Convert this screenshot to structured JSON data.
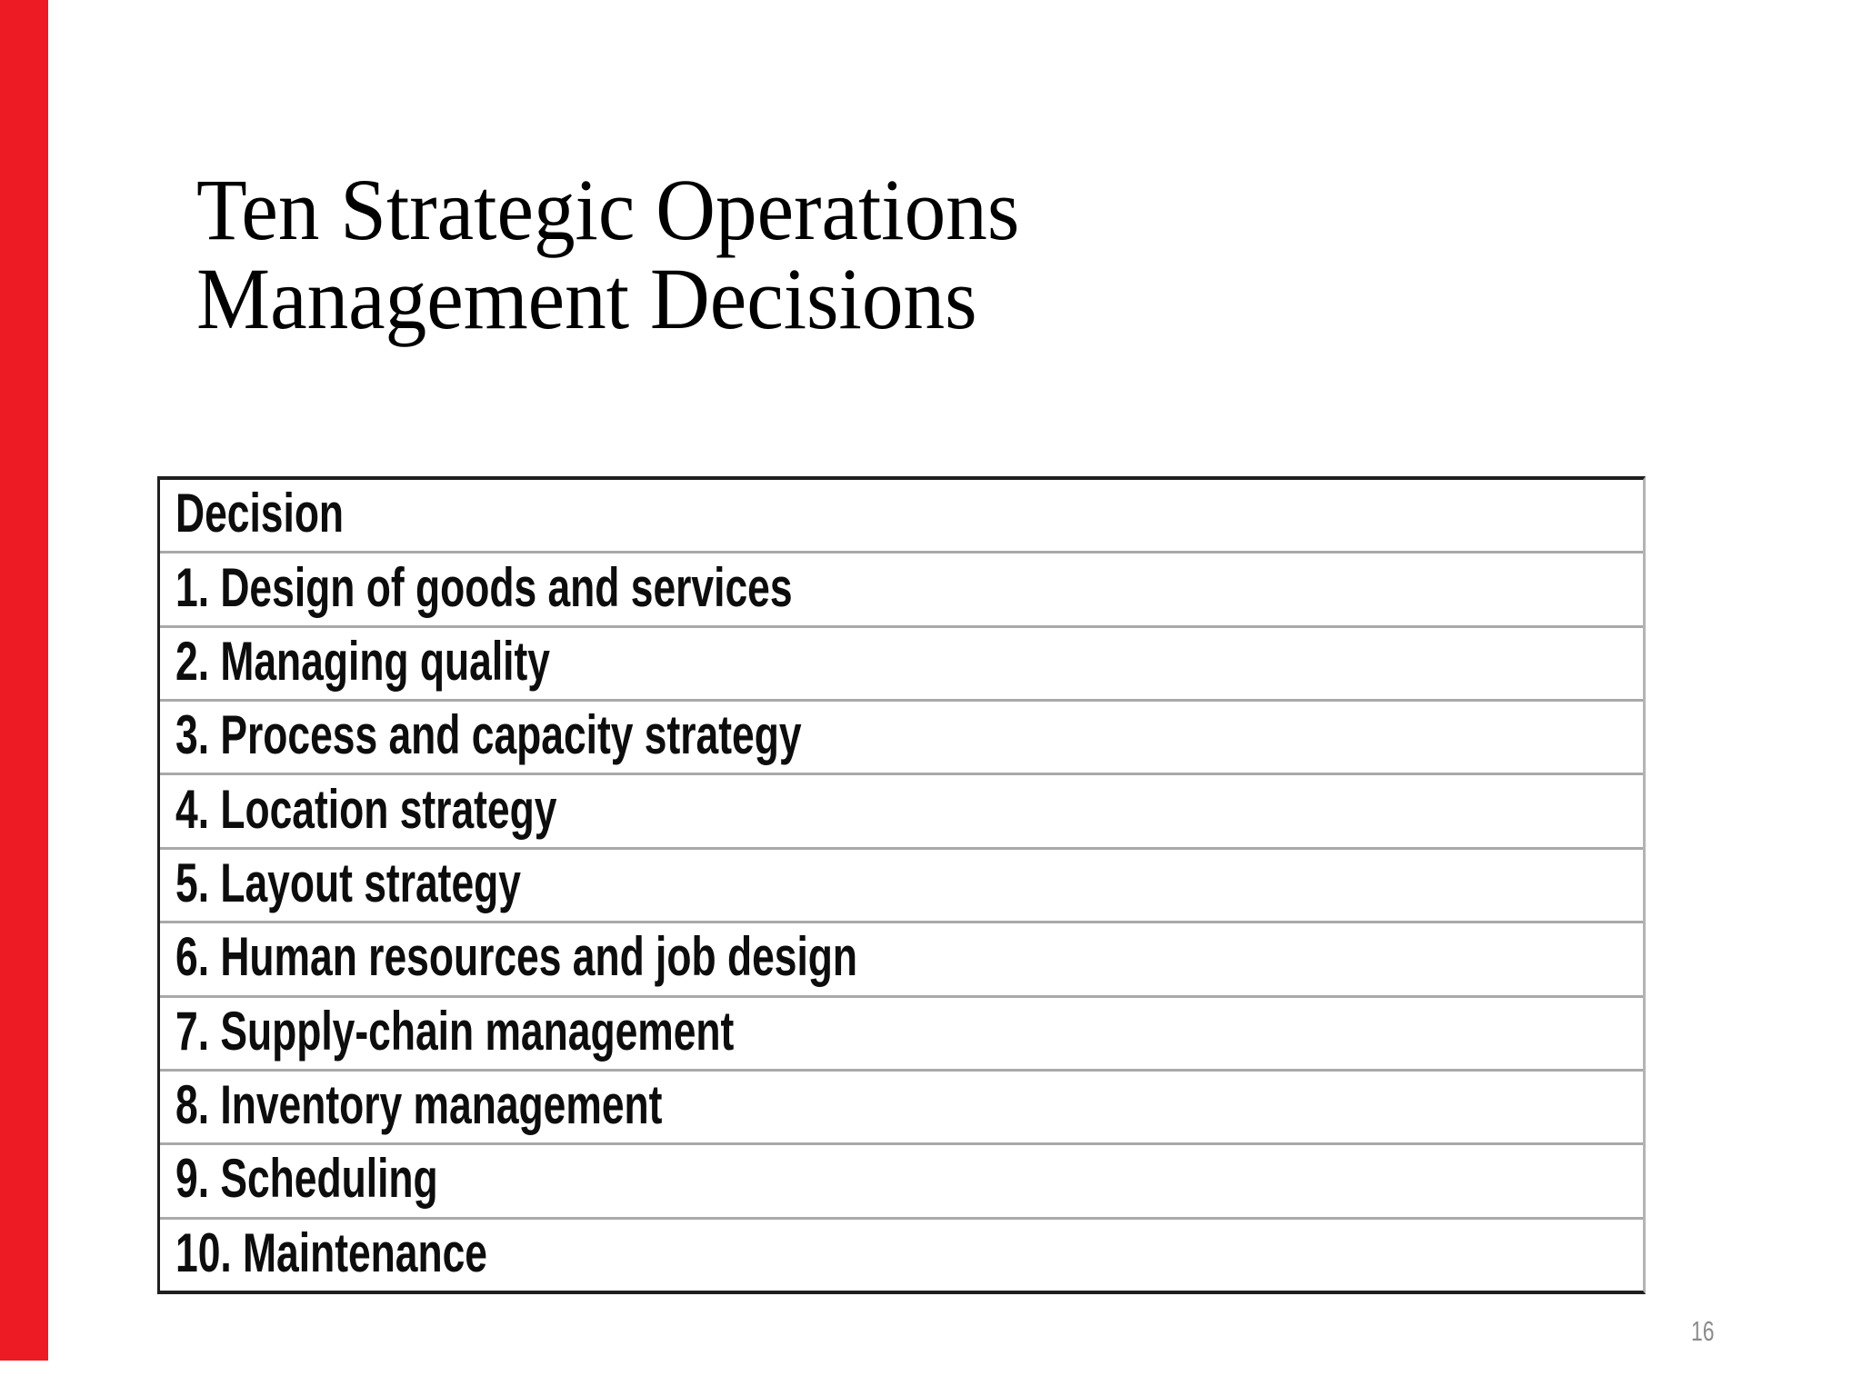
{
  "slide": {
    "title_lines": [
      "Ten Strategic Operations",
      "Management Decisions"
    ],
    "page_number": "16"
  },
  "table": {
    "header": "Decision",
    "rows": [
      "1. Design of goods and services",
      "2. Managing quality",
      "3. Process and capacity strategy",
      "4. Location strategy",
      "5. Layout strategy",
      "6. Human resources and job design",
      "7. Supply-chain management",
      "8. Inventory management",
      "9. Scheduling",
      "10. Maintenance"
    ]
  },
  "colors": {
    "accent_bar": "#ed1c24",
    "background": "#ffffff",
    "title_text": "#000000",
    "cell_text": "#0d0d0d",
    "table_border_dark": "#1f1f1f",
    "table_border_light": "#b4b4b4",
    "row_divider": "#a9a9a9",
    "page_number_text": "#8c8c8c"
  }
}
